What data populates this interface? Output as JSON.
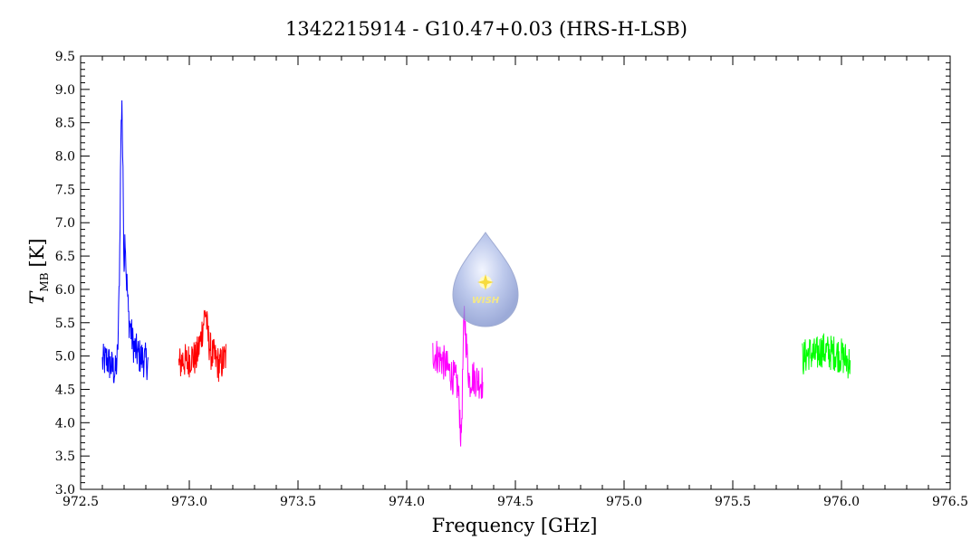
{
  "chart_data": {
    "type": "line",
    "title": "1342215914 - G10.47+0.03 (HRS-H-LSB)",
    "xlabel": "Frequency [GHz]",
    "ylabel_main": "T",
    "ylabel_sub": "MB",
    "ylabel_unit": "[K]",
    "xlim": [
      972.5,
      976.5
    ],
    "ylim": [
      3.0,
      9.5
    ],
    "x_ticks": [
      "972.5",
      "973.0",
      "973.5",
      "974.0",
      "974.5",
      "975.0",
      "975.5",
      "976.0",
      "976.5"
    ],
    "y_ticks": [
      "3.0",
      "3.5",
      "4.0",
      "4.5",
      "5.0",
      "5.5",
      "6.0",
      "6.5",
      "7.0",
      "7.5",
      "8.0",
      "8.5",
      "9.0",
      "9.5"
    ],
    "grid": false,
    "series": [
      {
        "color": "#0000ff",
        "points": [
          [
            972.6,
            4.9
          ],
          [
            972.62,
            4.95
          ],
          [
            972.64,
            4.85
          ],
          [
            972.66,
            4.75
          ],
          [
            972.67,
            5.0
          ],
          [
            972.675,
            5.6
          ],
          [
            972.68,
            6.6
          ],
          [
            972.685,
            8.2
          ],
          [
            972.69,
            8.9
          ],
          [
            972.695,
            7.6
          ],
          [
            972.7,
            6.4
          ],
          [
            972.705,
            6.9
          ],
          [
            972.71,
            6.2
          ],
          [
            972.715,
            6.0
          ],
          [
            972.72,
            5.6
          ],
          [
            972.73,
            5.4
          ],
          [
            972.74,
            5.2
          ],
          [
            972.75,
            5.1
          ],
          [
            972.77,
            5.0
          ],
          [
            972.79,
            4.95
          ],
          [
            972.81,
            4.9
          ]
        ]
      },
      {
        "color": "#ff0000",
        "points": [
          [
            972.95,
            4.85
          ],
          [
            972.97,
            4.95
          ],
          [
            972.99,
            4.9
          ],
          [
            973.01,
            5.0
          ],
          [
            973.03,
            4.95
          ],
          [
            973.05,
            5.2
          ],
          [
            973.065,
            5.5
          ],
          [
            973.075,
            5.7
          ],
          [
            973.085,
            5.3
          ],
          [
            973.1,
            5.05
          ],
          [
            973.12,
            4.95
          ],
          [
            973.14,
            4.85
          ],
          [
            973.17,
            5.0
          ]
        ]
      },
      {
        "color": "#ff00ff",
        "points": [
          [
            974.12,
            5.05
          ],
          [
            974.14,
            5.0
          ],
          [
            974.16,
            4.95
          ],
          [
            974.18,
            4.85
          ],
          [
            974.2,
            4.75
          ],
          [
            974.22,
            4.65
          ],
          [
            974.235,
            4.55
          ],
          [
            974.245,
            4.1
          ],
          [
            974.25,
            3.7
          ],
          [
            974.255,
            4.3
          ],
          [
            974.26,
            5.1
          ],
          [
            974.265,
            5.6
          ],
          [
            974.27,
            5.4
          ],
          [
            974.28,
            4.9
          ],
          [
            974.29,
            4.6
          ],
          [
            974.3,
            4.7
          ],
          [
            974.32,
            4.65
          ],
          [
            974.35,
            4.6
          ]
        ]
      },
      {
        "color": "#00ff00",
        "points": [
          [
            975.82,
            4.95
          ],
          [
            975.85,
            5.05
          ],
          [
            975.88,
            5.0
          ],
          [
            975.91,
            5.1
          ],
          [
            975.94,
            5.05
          ],
          [
            975.97,
            5.05
          ],
          [
            976.0,
            5.0
          ],
          [
            976.02,
            4.95
          ],
          [
            976.04,
            4.9
          ]
        ]
      }
    ]
  },
  "watermark": {
    "text": "WISH"
  }
}
